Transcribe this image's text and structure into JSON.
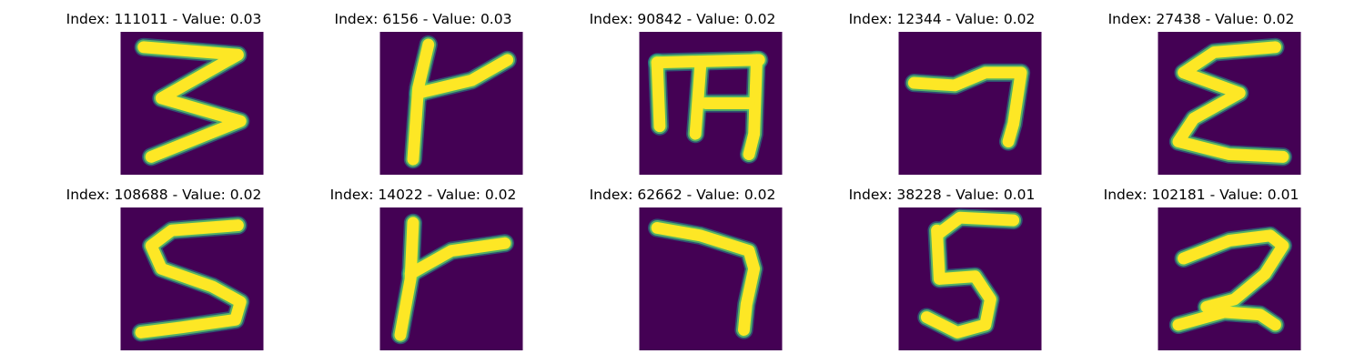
{
  "colors": {
    "background": "#440154",
    "stroke_core": "#fde725",
    "stroke_edge": "#21918c",
    "stroke_mid": "#5ec962"
  },
  "panels": [
    {
      "title": "Index: 111011 - Value: 0.03",
      "digit": "3"
    },
    {
      "title": "Index: 6156 - Value: 0.03",
      "digit": "cross"
    },
    {
      "title": "Index: 90842 - Value: 0.02",
      "digit": "m"
    },
    {
      "title": "Index: 12344 - Value: 0.02",
      "digit": "7"
    },
    {
      "title": "Index: 27438 - Value: 0.02",
      "digit": "sigma"
    },
    {
      "title": "Index: 108688 - Value: 0.02",
      "digit": "5"
    },
    {
      "title": "Index: 14022 - Value: 0.02",
      "digit": "cross"
    },
    {
      "title": "Index: 62662 - Value: 0.02",
      "digit": "7"
    },
    {
      "title": "Index: 38228 - Value: 0.01",
      "digit": "5"
    },
    {
      "title": "Index: 102181 - Value: 0.01",
      "digit": "2"
    }
  ]
}
